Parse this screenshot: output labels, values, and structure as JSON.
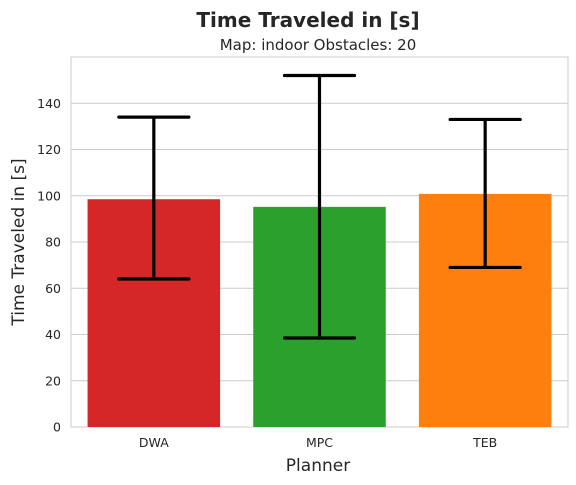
{
  "chart_data": {
    "type": "bar",
    "title": "Time Traveled in [s]",
    "subtitle": "Map: indoor Obstacles: 20",
    "xlabel": "Planner",
    "ylabel": "Time Traveled in [s]",
    "categories": [
      "DWA",
      "MPC",
      "TEB"
    ],
    "values": [
      98.5,
      95.2,
      100.8
    ],
    "error_low": [
      64,
      38.5,
      69
    ],
    "error_high": [
      134,
      152,
      133
    ],
    "colors": [
      "#d62728",
      "#2ca02c",
      "#ff7f0e"
    ],
    "ylim": [
      0,
      160
    ],
    "yticks": [
      0,
      20,
      40,
      60,
      80,
      100,
      120,
      140
    ],
    "grid": true
  }
}
